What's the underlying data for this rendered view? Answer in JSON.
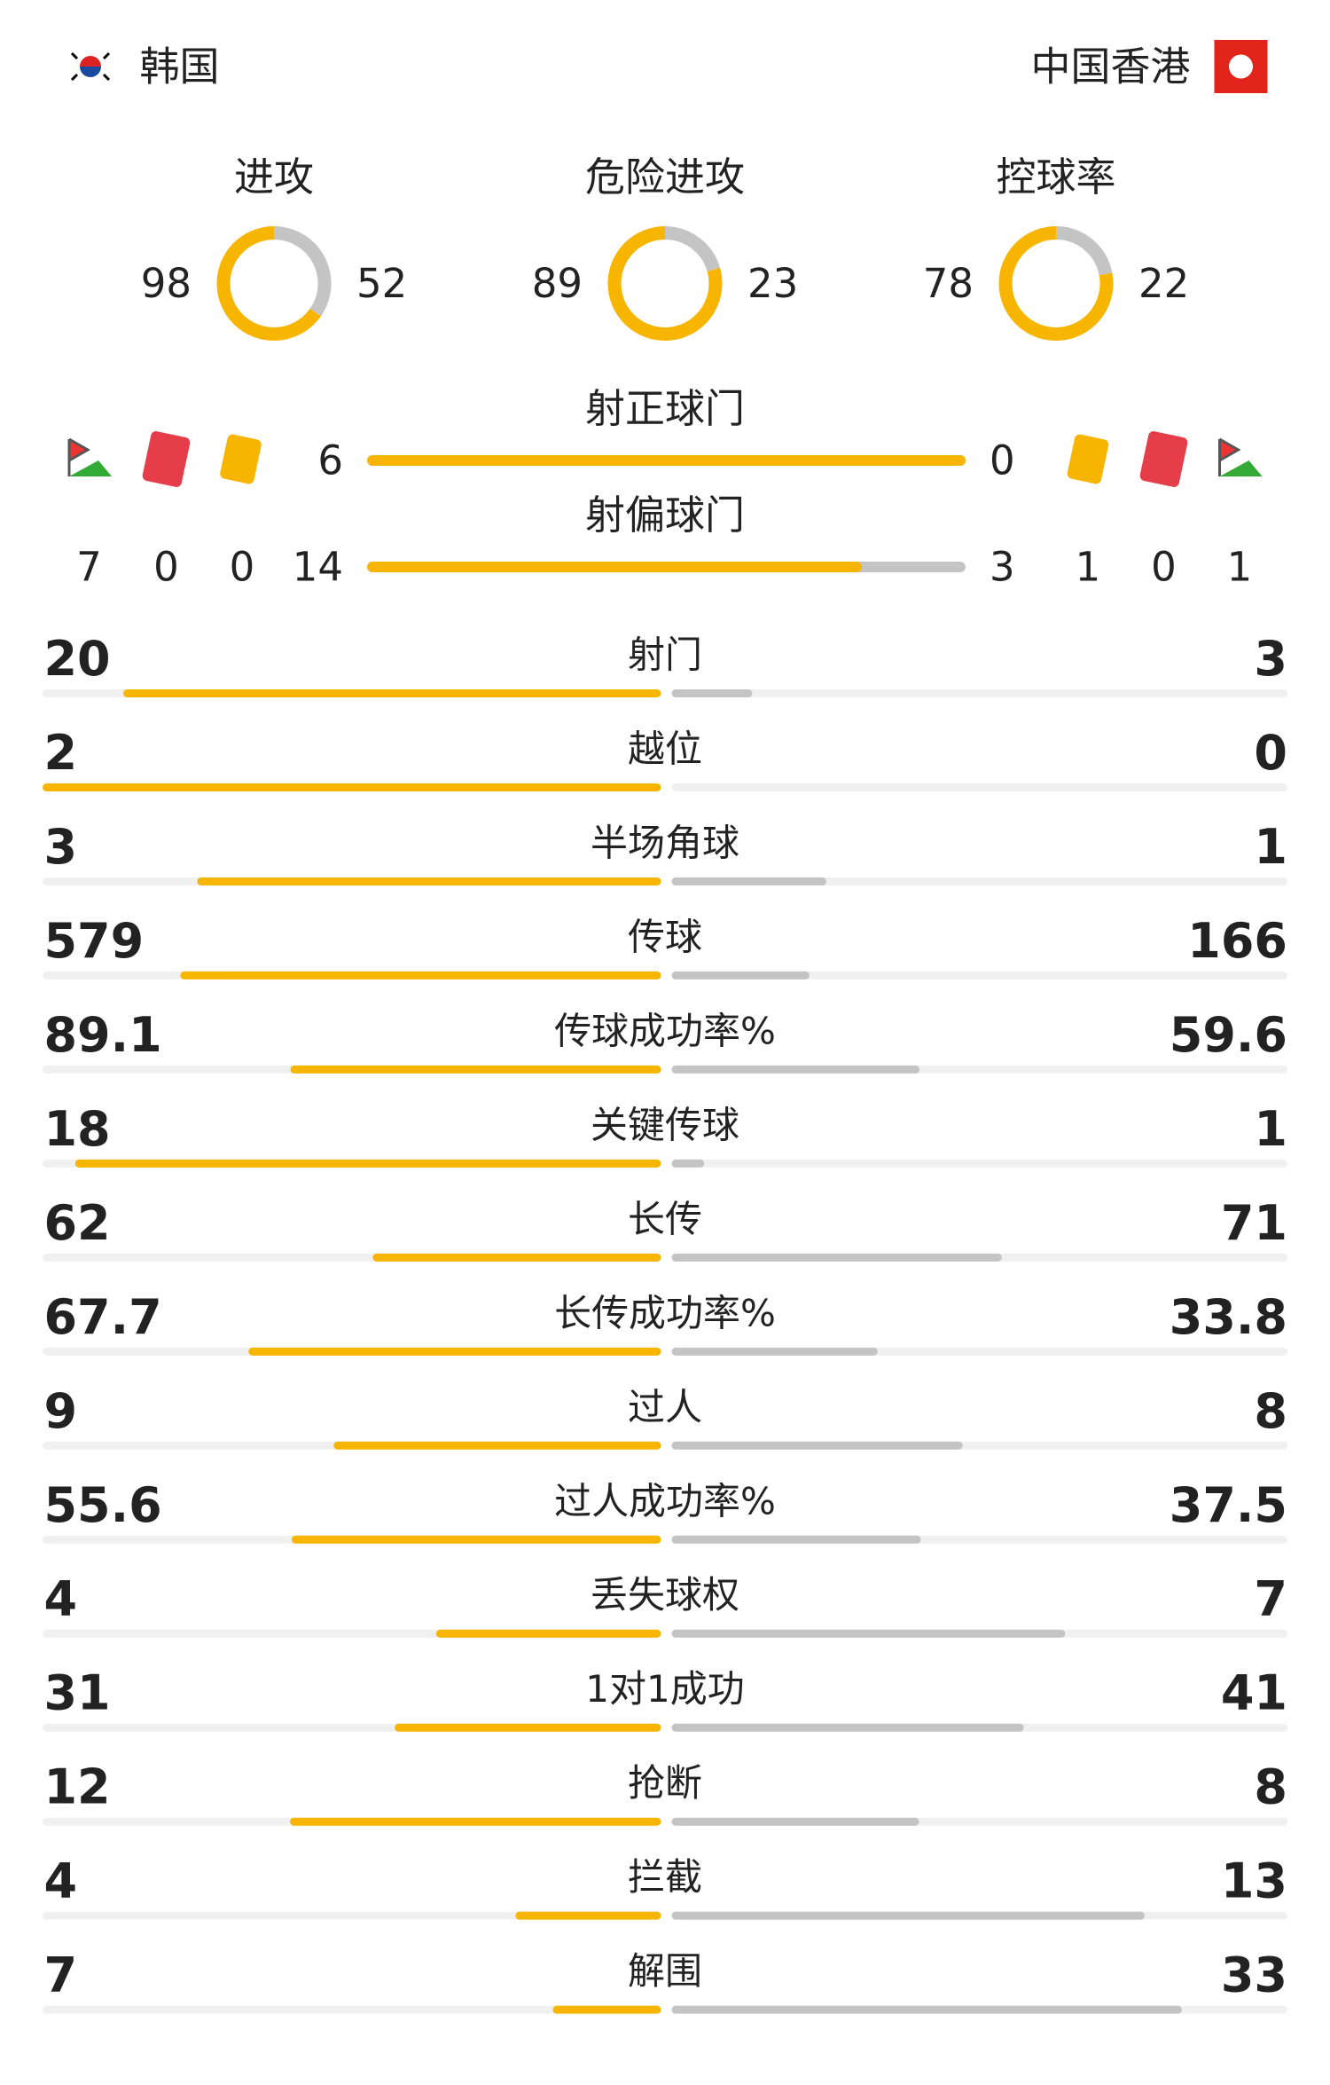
{
  "header": {
    "home": "韩国",
    "away": "中国香港"
  },
  "rings": [
    {
      "label": "进攻",
      "home": 98,
      "away": 52
    },
    {
      "label": "危险进攻",
      "home": 89,
      "away": 23
    },
    {
      "label": "控球率",
      "home": 78,
      "away": 22
    }
  ],
  "shots": [
    {
      "label": "射正球门",
      "home": 6,
      "away": 0
    },
    {
      "label": "射偏球门",
      "home": 14,
      "away": 3
    }
  ],
  "events": {
    "home": {
      "corners": 7,
      "red": 0,
      "yellow": 0
    },
    "away": {
      "yellow": 1,
      "red": 0,
      "corners": 1
    }
  },
  "stats": [
    {
      "label": "射门",
      "home": 20,
      "away": 3
    },
    {
      "label": "越位",
      "home": 2,
      "away": 0
    },
    {
      "label": "半场角球",
      "home": 3,
      "away": 1
    },
    {
      "label": "传球",
      "home": 579,
      "away": 166
    },
    {
      "label": "传球成功率%",
      "home": 89.1,
      "away": 59.6
    },
    {
      "label": "关键传球",
      "home": 18,
      "away": 1
    },
    {
      "label": "长传",
      "home": 62,
      "away": 71
    },
    {
      "label": "长传成功率%",
      "home": 67.7,
      "away": 33.8
    },
    {
      "label": "过人",
      "home": 9,
      "away": 8
    },
    {
      "label": "过人成功率%",
      "home": 55.6,
      "away": 37.5
    },
    {
      "label": "丢失球权",
      "home": 4,
      "away": 7
    },
    {
      "label": "1对1成功",
      "home": 31,
      "away": 41
    },
    {
      "label": "抢断",
      "home": 12,
      "away": 8
    },
    {
      "label": "拦截",
      "home": 4,
      "away": 13
    },
    {
      "label": "解围",
      "home": 7,
      "away": 33
    }
  ]
}
